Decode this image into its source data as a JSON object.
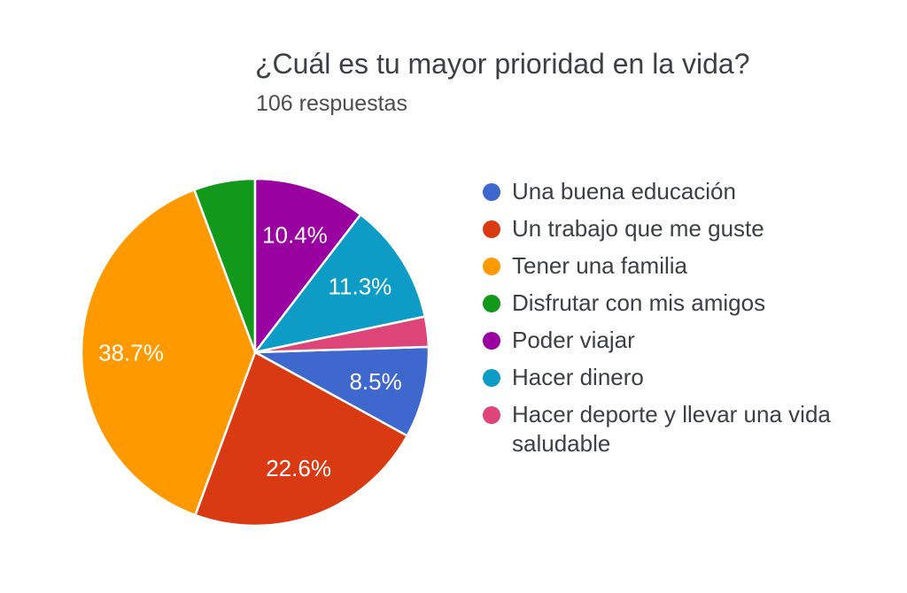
{
  "header": {
    "title": "¿Cuál es tu mayor prioridad en la vida?",
    "subtitle": "106 respuestas"
  },
  "chart_data": {
    "type": "pie",
    "title": "¿Cuál es tu mayor prioridad en la vida?",
    "subtitle": "106 respuestas",
    "total_responses": 106,
    "legend_position": "right",
    "direction": "clockwise",
    "start_angle_deg": 88.2,
    "slice_label_color": "#ffffff",
    "slices": [
      {
        "label": "Una buena educación",
        "pct": 8.5,
        "pct_label": "8.5%",
        "show_pct_label": true,
        "color": "#3E68CE"
      },
      {
        "label": "Un trabajo que me guste",
        "pct": 22.6,
        "pct_label": "22.6%",
        "show_pct_label": true,
        "color": "#DA3A12"
      },
      {
        "label": "Tener una familia",
        "pct": 38.7,
        "pct_label": "38.7%",
        "show_pct_label": true,
        "color": "#FF9900"
      },
      {
        "label": "Disfrutar con mis amigos",
        "pct": 5.7,
        "pct_label": "",
        "show_pct_label": false,
        "color": "#12991B"
      },
      {
        "label": "Poder viajar",
        "pct": 10.4,
        "pct_label": "10.4%",
        "show_pct_label": true,
        "color": "#9901A1"
      },
      {
        "label": "Hacer dinero",
        "pct": 11.3,
        "pct_label": "11.3%",
        "show_pct_label": true,
        "color": "#0D9CC5"
      },
      {
        "label": "Hacer deporte y llevar una vida saludable",
        "pct": 2.8,
        "pct_label": "",
        "show_pct_label": false,
        "color": "#DD4477"
      }
    ]
  }
}
